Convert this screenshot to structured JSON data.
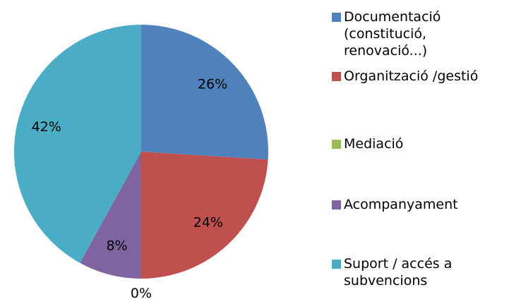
{
  "chart_data": {
    "type": "pie",
    "categories": [
      "Documentació (constitució, renovació...)",
      "Organització /gestió",
      "Mediació",
      "Acompanyament",
      "Suport / accés a subvencions"
    ],
    "values": [
      26,
      24,
      0,
      8,
      42
    ],
    "value_labels": [
      "26%",
      "24%",
      "0%",
      "8%",
      "42%"
    ],
    "colors": [
      "#4f81bd",
      "#c0504d",
      "#9bbb59",
      "#8064a2",
      "#4bacc6"
    ],
    "legend": "right"
  }
}
